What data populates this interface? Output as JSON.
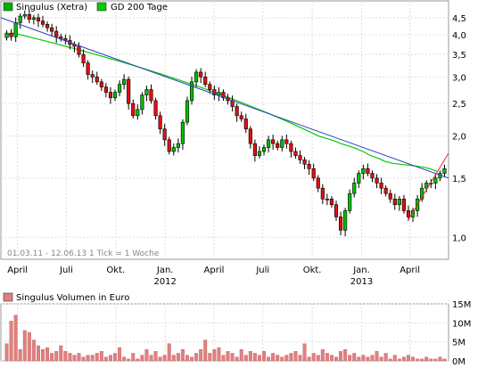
{
  "chart_data": [
    {
      "type": "candlestick",
      "legend": [
        {
          "label": "Singulus (Xetra)",
          "color": "#00b000"
        },
        {
          "label": "GD 200 Tage",
          "color": "#00cc00"
        }
      ],
      "y_scale": "log",
      "ylim": [
        0.86,
        5.05
      ],
      "y_ticks": [
        {
          "value": 1.0,
          "label": "1,0"
        },
        {
          "value": 1.5,
          "label": "1,5"
        },
        {
          "value": 2.0,
          "label": "2,0"
        },
        {
          "value": 2.5,
          "label": "2,5"
        },
        {
          "value": 3.0,
          "label": "3,0"
        },
        {
          "value": 3.5,
          "label": "3,5"
        },
        {
          "value": 4.0,
          "label": "4,0"
        },
        {
          "value": 4.5,
          "label": "4,5"
        }
      ],
      "x_range": [
        "2011-03-01",
        "2013-06-12"
      ],
      "x_ticks": [
        {
          "date": "2011-04-01",
          "label": "April"
        },
        {
          "date": "2011-07-01",
          "label": "Juli"
        },
        {
          "date": "2011-10-01",
          "label": "Okt."
        },
        {
          "date": "2012-01-01",
          "label": "Jan."
        },
        {
          "date": "2012-04-01",
          "label": "April"
        },
        {
          "date": "2012-07-01",
          "label": "Juli"
        },
        {
          "date": "2012-10-01",
          "label": "Okt."
        },
        {
          "date": "2013-01-01",
          "label": "Jan."
        },
        {
          "date": "2013-04-01",
          "label": "April"
        }
      ],
      "year_labels": [
        {
          "date": "2012-01-01",
          "label": "2012"
        },
        {
          "date": "2013-01-01",
          "label": "2013"
        }
      ],
      "info_text": "01.03.11 - 12.06.13   1 Tick = 1 Woche",
      "weekly_close": [
        4.05,
        3.95,
        4.35,
        4.55,
        4.6,
        4.45,
        4.5,
        4.4,
        4.3,
        4.2,
        4.1,
        3.95,
        3.9,
        3.85,
        3.75,
        3.7,
        3.5,
        3.3,
        3.05,
        3.0,
        2.9,
        2.8,
        2.7,
        2.6,
        2.7,
        2.85,
        2.95,
        2.5,
        2.3,
        2.4,
        2.65,
        2.75,
        2.55,
        2.3,
        2.1,
        1.95,
        1.8,
        1.85,
        1.9,
        2.2,
        2.55,
        2.9,
        3.1,
        3.0,
        2.85,
        2.75,
        2.65,
        2.7,
        2.6,
        2.55,
        2.45,
        2.3,
        2.25,
        2.1,
        1.9,
        1.75,
        1.8,
        1.85,
        1.95,
        1.9,
        1.85,
        1.95,
        1.9,
        1.8,
        1.75,
        1.7,
        1.65,
        1.6,
        1.5,
        1.4,
        1.3,
        1.3,
        1.25,
        1.15,
        1.05,
        1.2,
        1.35,
        1.45,
        1.55,
        1.6,
        1.55,
        1.5,
        1.45,
        1.4,
        1.35,
        1.3,
        1.25,
        1.3,
        1.2,
        1.15,
        1.2,
        1.3,
        1.4,
        1.45,
        1.45,
        1.5,
        1.55,
        1.6
      ],
      "ma200": [
        4.0,
        4.05,
        4.0,
        3.95,
        3.9,
        3.85,
        3.8,
        3.75,
        3.7,
        3.65,
        3.6,
        3.55,
        3.5,
        3.45,
        3.4,
        3.35,
        3.3,
        3.25,
        3.2,
        3.15,
        3.1,
        3.05,
        3.0,
        2.95,
        2.9,
        2.85,
        2.8,
        2.75,
        2.7,
        2.65,
        2.6,
        2.55,
        2.5,
        2.45,
        2.4,
        2.35,
        2.3,
        2.25,
        2.2,
        2.15,
        2.1,
        2.05,
        2.0,
        1.97,
        1.94,
        1.9,
        1.87,
        1.84,
        1.8,
        1.75,
        1.72,
        1.68,
        1.66,
        1.65,
        1.64,
        1.63,
        1.62,
        1.6,
        1.57
      ],
      "trendlines": [
        {
          "name": "resistance",
          "color": "#3040c0",
          "points": [
            [
              "2011-03-01",
              4.5
            ],
            [
              "2013-06-12",
              1.5
            ]
          ]
        },
        {
          "name": "support",
          "color": "#e03030",
          "points": [
            [
              "2013-03-28",
              1.12
            ],
            [
              "2013-06-12",
              1.78
            ]
          ]
        }
      ]
    },
    {
      "type": "bar",
      "legend": [
        {
          "label": "Singulus Volumen in Euro",
          "color": "#e08080"
        }
      ],
      "ylim": [
        0,
        15000000
      ],
      "y_ticks": [
        {
          "value": 0,
          "label": "0M"
        },
        {
          "value": 5000000,
          "label": "5M"
        },
        {
          "value": 10000000,
          "label": "10M"
        },
        {
          "value": 15000000,
          "label": "15M"
        }
      ],
      "weekly_volume": [
        4500000,
        10500000,
        12000000,
        3000000,
        8000000,
        7500000,
        5500000,
        4000000,
        3000000,
        3500000,
        2000000,
        2500000,
        4000000,
        2500000,
        2000000,
        1500000,
        2000000,
        1000000,
        1500000,
        1500000,
        2000000,
        2500000,
        1000000,
        1500000,
        2000000,
        3500000,
        1000000,
        500000,
        2000000,
        500000,
        1500000,
        3000000,
        1500000,
        2500000,
        1000000,
        1500000,
        4500000,
        1500000,
        2000000,
        3000000,
        1500000,
        1000000,
        2000000,
        3000000,
        5500000,
        2000000,
        3000000,
        3500000,
        1500000,
        2500000,
        2000000,
        1000000,
        3000000,
        1500000,
        2500000,
        2000000,
        1500000,
        2500000,
        1000000,
        2000000,
        1500000,
        1000000,
        1500000,
        2000000,
        2500000,
        1500000,
        4500000,
        1000000,
        2000000,
        1500000,
        3000000,
        2000000,
        1500000,
        1000000,
        2500000,
        3000000,
        1500000,
        2000000,
        1000000,
        1500000,
        1000000,
        1500000,
        2500000,
        1000000,
        2000000,
        500000,
        1500000,
        500000,
        1000000,
        1500000,
        1000000,
        500000,
        500000,
        1000000,
        500000,
        500000,
        1000000,
        500000
      ]
    }
  ]
}
